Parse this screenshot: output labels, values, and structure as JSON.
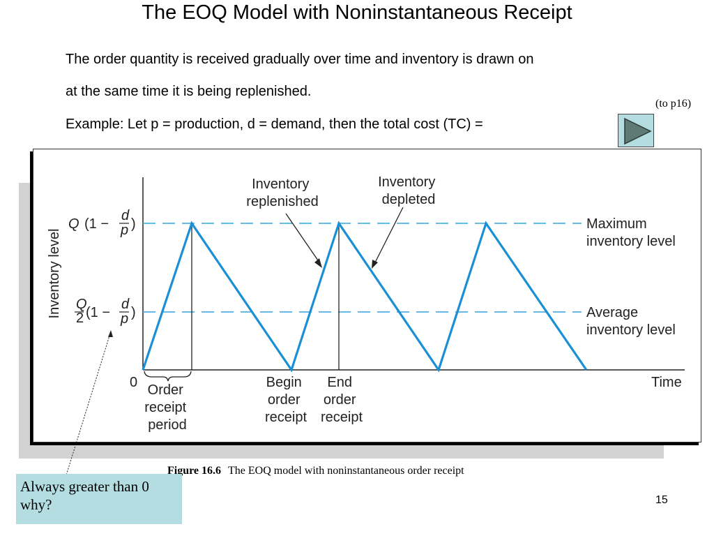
{
  "slide": {
    "title": "The EOQ Model with Noninstantaneous Receipt",
    "line1": "The order quantity  is received gradually over time and inventory is drawn on",
    "line2": "at the same time it is being replenished.",
    "line3": "Example: Let p = production, d = demand, then the total cost (TC) =",
    "link_text": "(to p16)",
    "page_number": "15"
  },
  "figure": {
    "ylabel": "Inventory level",
    "y_max_label": {
      "q": "Q",
      "rest": "(1 −",
      "d": "d",
      "p": "p",
      "close": ")"
    },
    "y_avg_label": {
      "q": "Q",
      "two": "2",
      "rest": "(1 −",
      "d": "d",
      "p": "p",
      "close": ")"
    },
    "origin_label": "0",
    "time_label": "Time",
    "annotations": {
      "replenished": [
        "Inventory",
        "replenished"
      ],
      "depleted": [
        "Inventory",
        "depleted"
      ],
      "max_level": [
        "Maximum",
        "inventory level"
      ],
      "avg_level": [
        "Average",
        "inventory level"
      ],
      "order_receipt_period": [
        "Order",
        "receipt",
        "period"
      ],
      "begin_order_receipt": [
        "Begin",
        "order",
        "receipt"
      ],
      "end_order_receipt": [
        "End",
        "order",
        "receipt"
      ]
    },
    "caption_number": "Figure 16.6",
    "caption_text": "The EOQ model with noninstantaneous order receipt",
    "colors": {
      "sawtooth": "#1a8fd6",
      "dashed": "#4fb0e0",
      "axis": "#222222"
    }
  },
  "note": {
    "line1": "Always greater than 0",
    "line2": "why?"
  }
}
